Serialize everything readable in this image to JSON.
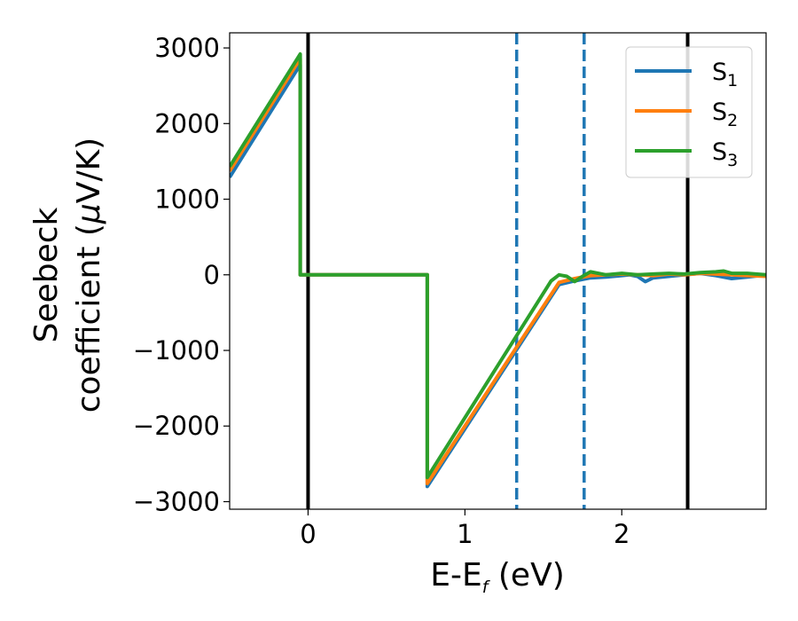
{
  "chart_data": {
    "type": "line",
    "xlabel": "E-E",
    "xlabel_sub": "f",
    "xlabel_unit": " (eV)",
    "ylabel_line1": "Seebeck",
    "ylabel_line2": "coefficient  (",
    "ylabel_mu": "μ",
    "ylabel_unit": "V/K)",
    "xlim": [
      -0.5,
      2.92
    ],
    "ylim": [
      -3100,
      3200
    ],
    "xticks": [
      0,
      1,
      2
    ],
    "xtick_labels": [
      "0",
      "1",
      "2"
    ],
    "yticks": [
      3000,
      2000,
      1000,
      0,
      -1000,
      -2000,
      -3000
    ],
    "ytick_labels": [
      "3000",
      "2000",
      "1000",
      "0",
      "−1000",
      "−2000",
      "−3000"
    ],
    "grid": false,
    "legend_position": "top-right",
    "vlines": [
      {
        "x": 0.0,
        "style": "solid",
        "color": "#000000"
      },
      {
        "x": 2.42,
        "style": "solid",
        "color": "#000000"
      },
      {
        "x": 1.33,
        "style": "dashed",
        "color": "#1f77b4"
      },
      {
        "x": 1.76,
        "style": "dashed",
        "color": "#1f77b4"
      }
    ],
    "series": [
      {
        "name": "S",
        "sub": "1",
        "color": "#1f77b4",
        "points": [
          [
            -0.5,
            1290
          ],
          [
            -0.05,
            2780
          ],
          [
            -0.05,
            0
          ],
          [
            0.76,
            0
          ],
          [
            0.76,
            -2800
          ],
          [
            1.6,
            -130
          ],
          [
            1.7,
            -80
          ],
          [
            1.8,
            -40
          ],
          [
            1.9,
            -30
          ],
          [
            2.0,
            -10
          ],
          [
            2.05,
            0
          ],
          [
            2.1,
            -20
          ],
          [
            2.15,
            -90
          ],
          [
            2.2,
            -40
          ],
          [
            2.3,
            -20
          ],
          [
            2.4,
            0
          ],
          [
            2.5,
            20
          ],
          [
            2.6,
            -10
          ],
          [
            2.7,
            -50
          ],
          [
            2.8,
            -30
          ],
          [
            2.92,
            0
          ]
        ]
      },
      {
        "name": "S",
        "sub": "2",
        "color": "#ff7f0e",
        "points": [
          [
            -0.5,
            1370
          ],
          [
            -0.05,
            2860
          ],
          [
            -0.05,
            0
          ],
          [
            0.76,
            0
          ],
          [
            0.76,
            -2760
          ],
          [
            1.6,
            -100
          ],
          [
            1.7,
            -50
          ],
          [
            1.8,
            -10
          ],
          [
            1.9,
            0
          ],
          [
            2.0,
            10
          ],
          [
            2.1,
            0
          ],
          [
            2.2,
            -10
          ],
          [
            2.3,
            10
          ],
          [
            2.4,
            0
          ],
          [
            2.5,
            20
          ],
          [
            2.6,
            10
          ],
          [
            2.7,
            0
          ],
          [
            2.8,
            -10
          ],
          [
            2.92,
            -20
          ]
        ]
      },
      {
        "name": "S",
        "sub": "3",
        "color": "#2ca02c",
        "points": [
          [
            -0.5,
            1430
          ],
          [
            -0.05,
            2920
          ],
          [
            -0.05,
            0
          ],
          [
            0.76,
            0
          ],
          [
            0.76,
            -2680
          ],
          [
            1.55,
            -80
          ],
          [
            1.6,
            0
          ],
          [
            1.65,
            -20
          ],
          [
            1.7,
            -90
          ],
          [
            1.75,
            -20
          ],
          [
            1.8,
            40
          ],
          [
            1.9,
            0
          ],
          [
            2.0,
            20
          ],
          [
            2.1,
            0
          ],
          [
            2.2,
            10
          ],
          [
            2.3,
            20
          ],
          [
            2.4,
            10
          ],
          [
            2.5,
            30
          ],
          [
            2.6,
            40
          ],
          [
            2.65,
            50
          ],
          [
            2.7,
            20
          ],
          [
            2.8,
            20
          ],
          [
            2.92,
            0
          ]
        ]
      }
    ]
  }
}
